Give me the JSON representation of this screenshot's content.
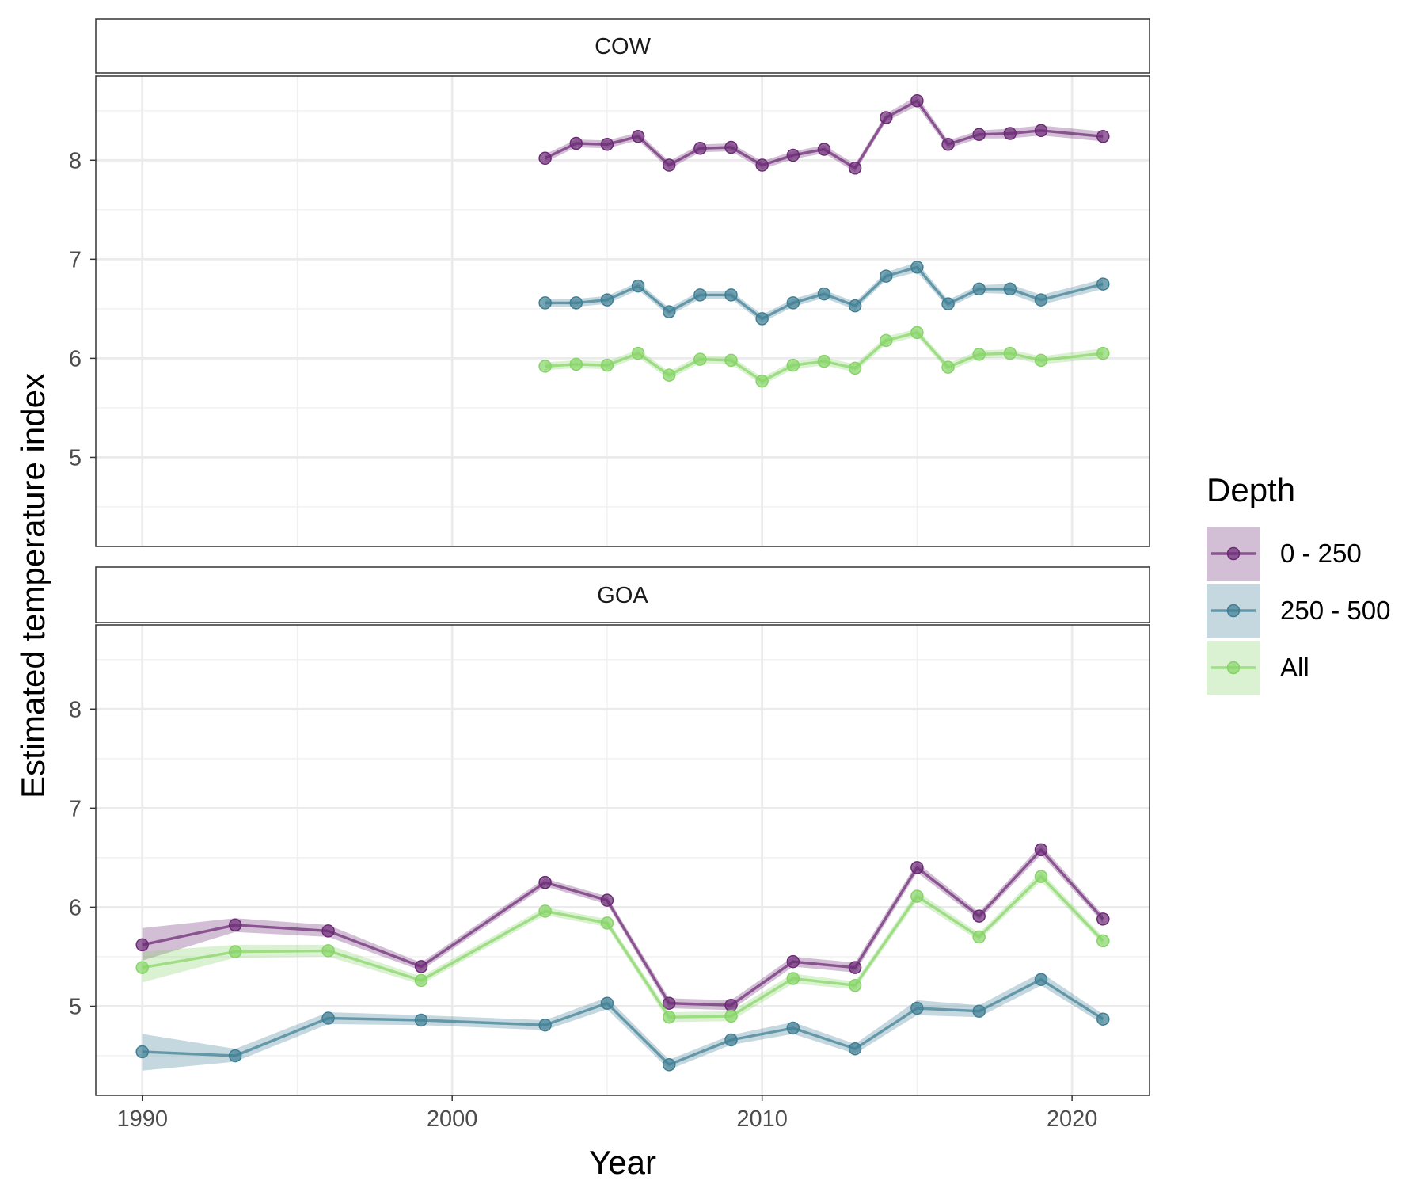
{
  "chart_data": {
    "type": "line",
    "xlabel": "Year",
    "ylabel": "Estimated temperature index",
    "xlim": [
      1988.5,
      2022.5
    ],
    "ylim": [
      4.1,
      8.85
    ],
    "x_ticks": [
      1990,
      2000,
      2010,
      2020
    ],
    "y_ticks": [
      5,
      6,
      7,
      8
    ],
    "grid": true,
    "legend": {
      "title": "Depth",
      "position": "right",
      "entries": [
        "0 - 250",
        "250 - 500",
        "All"
      ]
    },
    "colors": {
      "0 - 250": "#6b2a75",
      "250 - 500": "#3f7f94",
      "All": "#86d467"
    },
    "facets": [
      {
        "label": "COW",
        "series": [
          {
            "name": "0 - 250",
            "x": [
              2003,
              2004,
              2005,
              2006,
              2007,
              2008,
              2009,
              2010,
              2011,
              2012,
              2013,
              2014,
              2015,
              2016,
              2017,
              2018,
              2019,
              2021
            ],
            "y": [
              8.02,
              8.17,
              8.16,
              8.24,
              7.95,
              8.12,
              8.13,
              7.95,
              8.05,
              8.11,
              7.92,
              8.43,
              8.6,
              8.16,
              8.26,
              8.27,
              8.3,
              8.24
            ],
            "lower": [
              7.98,
              8.13,
              8.12,
              8.2,
              7.91,
              8.08,
              8.09,
              7.91,
              8.01,
              8.07,
              7.88,
              8.39,
              8.55,
              8.12,
              8.22,
              8.22,
              8.25,
              8.19
            ],
            "upper": [
              8.06,
              8.21,
              8.2,
              8.28,
              7.99,
              8.16,
              8.17,
              7.99,
              8.09,
              8.15,
              7.96,
              8.47,
              8.65,
              8.2,
              8.3,
              8.32,
              8.35,
              8.29
            ]
          },
          {
            "name": "250 - 500",
            "x": [
              2003,
              2004,
              2005,
              2006,
              2007,
              2008,
              2009,
              2010,
              2011,
              2012,
              2013,
              2014,
              2015,
              2016,
              2017,
              2018,
              2019,
              2021
            ],
            "y": [
              6.56,
              6.56,
              6.59,
              6.73,
              6.47,
              6.64,
              6.64,
              6.4,
              6.56,
              6.65,
              6.53,
              6.83,
              6.92,
              6.55,
              6.7,
              6.7,
              6.59,
              6.75
            ],
            "lower": [
              6.52,
              6.52,
              6.55,
              6.69,
              6.43,
              6.6,
              6.6,
              6.36,
              6.52,
              6.61,
              6.49,
              6.79,
              6.87,
              6.51,
              6.66,
              6.65,
              6.54,
              6.7
            ],
            "upper": [
              6.6,
              6.6,
              6.63,
              6.77,
              6.51,
              6.68,
              6.68,
              6.44,
              6.6,
              6.69,
              6.57,
              6.87,
              6.97,
              6.59,
              6.74,
              6.75,
              6.64,
              6.8
            ]
          },
          {
            "name": "All",
            "x": [
              2003,
              2004,
              2005,
              2006,
              2007,
              2008,
              2009,
              2010,
              2011,
              2012,
              2013,
              2014,
              2015,
              2016,
              2017,
              2018,
              2019,
              2021
            ],
            "y": [
              5.92,
              5.94,
              5.93,
              6.05,
              5.83,
              5.99,
              5.98,
              5.77,
              5.93,
              5.97,
              5.9,
              6.18,
              6.26,
              5.91,
              6.04,
              6.05,
              5.98,
              6.05
            ],
            "lower": [
              5.88,
              5.9,
              5.89,
              6.01,
              5.79,
              5.95,
              5.94,
              5.73,
              5.89,
              5.93,
              5.86,
              6.14,
              6.22,
              5.87,
              6.0,
              6.01,
              5.94,
              6.0
            ],
            "upper": [
              5.96,
              5.98,
              5.97,
              6.09,
              5.87,
              6.03,
              6.02,
              5.81,
              5.97,
              6.01,
              5.94,
              6.22,
              6.3,
              5.95,
              6.08,
              6.09,
              6.02,
              6.1
            ]
          }
        ]
      },
      {
        "label": "GOA",
        "series": [
          {
            "name": "0 - 250",
            "x": [
              1990,
              1993,
              1996,
              1999,
              2003,
              2005,
              2007,
              2009,
              2011,
              2013,
              2015,
              2017,
              2019,
              2021
            ],
            "y": [
              5.62,
              5.82,
              5.76,
              5.4,
              6.25,
              6.07,
              5.03,
              5.01,
              5.45,
              5.39,
              6.4,
              5.91,
              6.58,
              5.88
            ],
            "lower": [
              5.46,
              5.75,
              5.7,
              5.36,
              6.21,
              6.03,
              4.98,
              4.96,
              5.4,
              5.34,
              6.35,
              5.87,
              6.53,
              5.84
            ],
            "upper": [
              5.79,
              5.89,
              5.82,
              5.44,
              6.29,
              6.11,
              5.08,
              5.06,
              5.5,
              5.44,
              6.45,
              5.95,
              6.63,
              5.92
            ]
          },
          {
            "name": "250 - 500",
            "x": [
              1990,
              1993,
              1996,
              1999,
              2003,
              2005,
              2007,
              2009,
              2011,
              2013,
              2015,
              2017,
              2019,
              2021
            ],
            "y": [
              4.54,
              4.5,
              4.88,
              4.86,
              4.81,
              5.03,
              4.41,
              4.66,
              4.78,
              4.57,
              4.98,
              4.95,
              5.27,
              4.87
            ],
            "lower": [
              4.35,
              4.44,
              4.82,
              4.81,
              4.76,
              4.97,
              4.36,
              4.61,
              4.72,
              4.52,
              4.91,
              4.89,
              5.21,
              4.82
            ],
            "upper": [
              4.72,
              4.57,
              4.94,
              4.91,
              4.86,
              5.09,
              4.46,
              4.71,
              4.84,
              4.62,
              5.06,
              5.01,
              5.34,
              4.92
            ]
          },
          {
            "name": "All",
            "x": [
              1990,
              1993,
              1996,
              1999,
              2003,
              2005,
              2007,
              2009,
              2011,
              2013,
              2015,
              2017,
              2019,
              2021
            ],
            "y": [
              5.39,
              5.55,
              5.56,
              5.26,
              5.96,
              5.84,
              4.89,
              4.9,
              5.28,
              5.21,
              6.11,
              5.7,
              6.31,
              5.66
            ],
            "lower": [
              5.24,
              5.49,
              5.5,
              5.22,
              5.92,
              5.8,
              4.84,
              4.85,
              5.23,
              5.17,
              6.06,
              5.66,
              6.26,
              5.62
            ],
            "upper": [
              5.55,
              5.62,
              5.62,
              5.3,
              6.0,
              5.88,
              4.94,
              4.95,
              5.33,
              5.25,
              6.16,
              5.74,
              6.36,
              5.7
            ]
          }
        ]
      }
    ]
  }
}
